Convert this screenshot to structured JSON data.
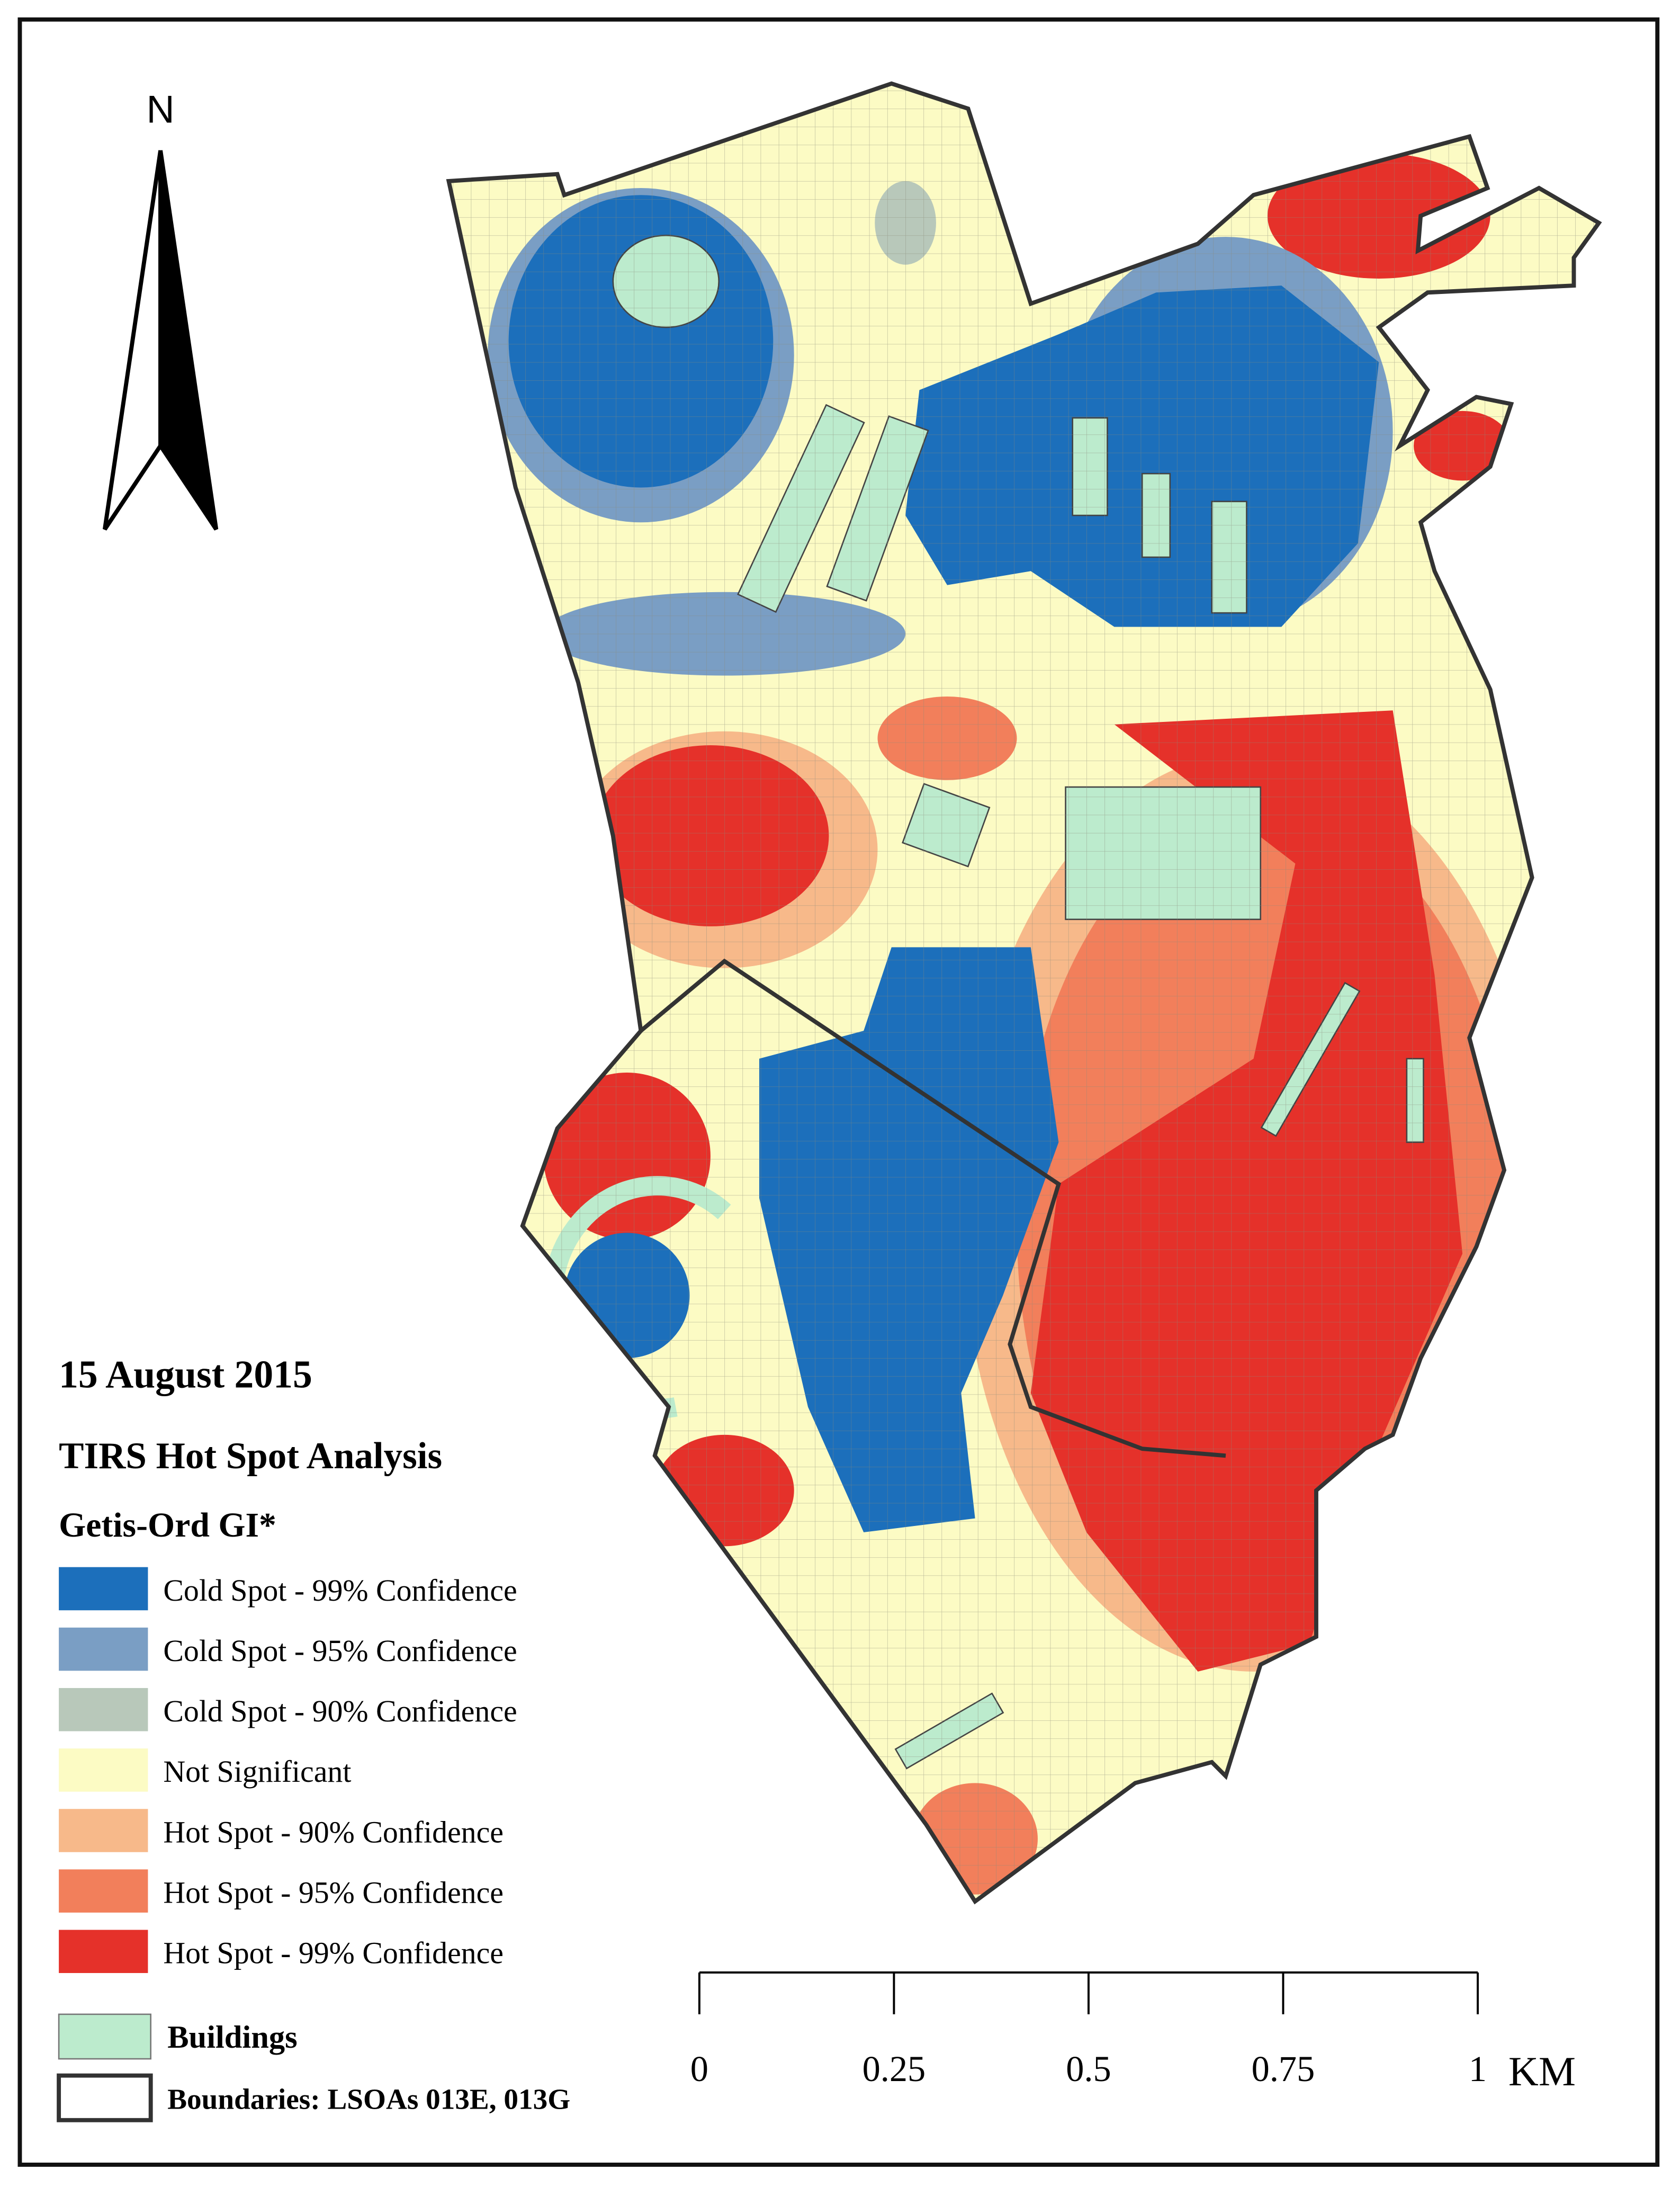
{
  "north": "N",
  "legend": {
    "date": "15 August 2015",
    "title": "TIRS Hot Spot Analysis",
    "subtitle": "Getis-Ord GI*",
    "items": [
      {
        "label": "Cold Spot - 99% Confidence",
        "color": "#1c6fbb"
      },
      {
        "label": "Cold Spot - 95% Confidence",
        "color": "#7a9ec4"
      },
      {
        "label": "Cold Spot - 90% Confidence",
        "color": "#b8c8ba"
      },
      {
        "label": "Not Significant",
        "color": "#fcfbc4"
      },
      {
        "label": "Hot Spot - 90% Confidence",
        "color": "#f7b98a"
      },
      {
        "label": "Hot Spot - 95% Confidence",
        "color": "#f27f5b"
      },
      {
        "label": "Hot Spot - 99% Confidence",
        "color": "#e5312a"
      }
    ],
    "buildings": {
      "label": "Buildings",
      "color": "#bcebcd"
    },
    "boundaries": {
      "label": "Boundaries: LSOAs 013E, 013G",
      "color": "#333333"
    }
  },
  "scale": {
    "ticks": [
      0,
      0.25,
      0.5,
      0.75,
      1
    ],
    "unit": "KM"
  }
}
